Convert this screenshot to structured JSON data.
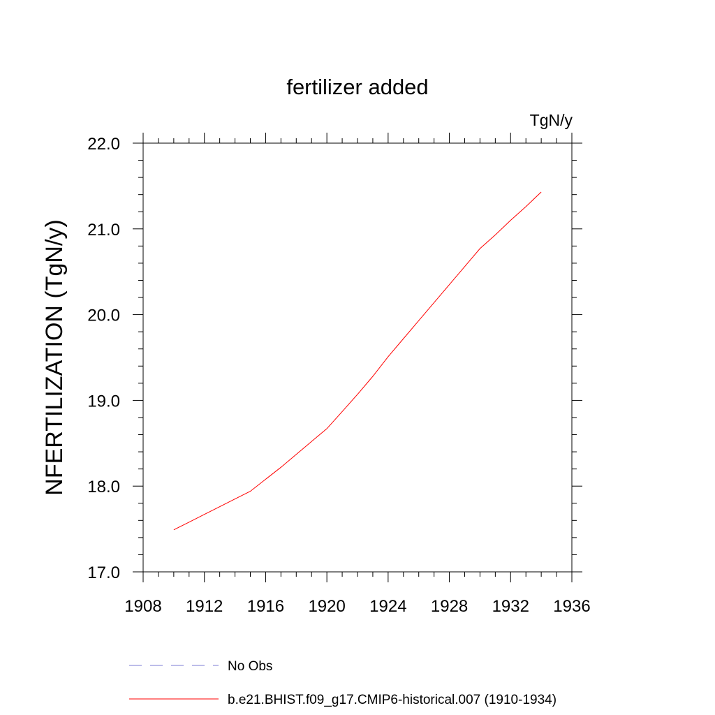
{
  "chart_data": {
    "type": "line",
    "title": "fertilizer added",
    "units_label": "TgN/y",
    "xlabel": "",
    "ylabel": "NFERTILIZATION  (TgN/y)",
    "xlim": [
      1908,
      1936
    ],
    "ylim": [
      17.0,
      22.0
    ],
    "x_ticks": [
      "1908",
      "1912",
      "1916",
      "1920",
      "1924",
      "1928",
      "1932",
      "1936"
    ],
    "y_ticks": [
      "17.0",
      "18.0",
      "19.0",
      "20.0",
      "21.0",
      "22.0"
    ],
    "grid": false,
    "legend_position": "bottom",
    "series": [
      {
        "name": "b.e21.BHIST.f09_g17.CMIP6-historical.007 (1910-1934)",
        "color": "#ff0000",
        "style": "solid",
        "x": [
          1910,
          1911,
          1912,
          1913,
          1914,
          1915,
          1916,
          1917,
          1918,
          1919,
          1920,
          1921,
          1922,
          1923,
          1924,
          1925,
          1926,
          1927,
          1928,
          1929,
          1930,
          1931,
          1932,
          1933,
          1934
        ],
        "y": [
          17.49,
          17.58,
          17.67,
          17.76,
          17.85,
          17.94,
          18.08,
          18.22,
          18.37,
          18.52,
          18.67,
          18.87,
          19.07,
          19.28,
          19.51,
          19.72,
          19.93,
          20.14,
          20.35,
          20.56,
          20.77,
          20.93,
          21.1,
          21.26,
          21.43
        ]
      }
    ],
    "legend": [
      {
        "label": "No Obs",
        "color": "#7b7bd6",
        "style": "dashed"
      },
      {
        "label": "b.e21.BHIST.f09_g17.CMIP6-historical.007 (1910-1934)",
        "color": "#ff0000",
        "style": "solid"
      }
    ]
  }
}
